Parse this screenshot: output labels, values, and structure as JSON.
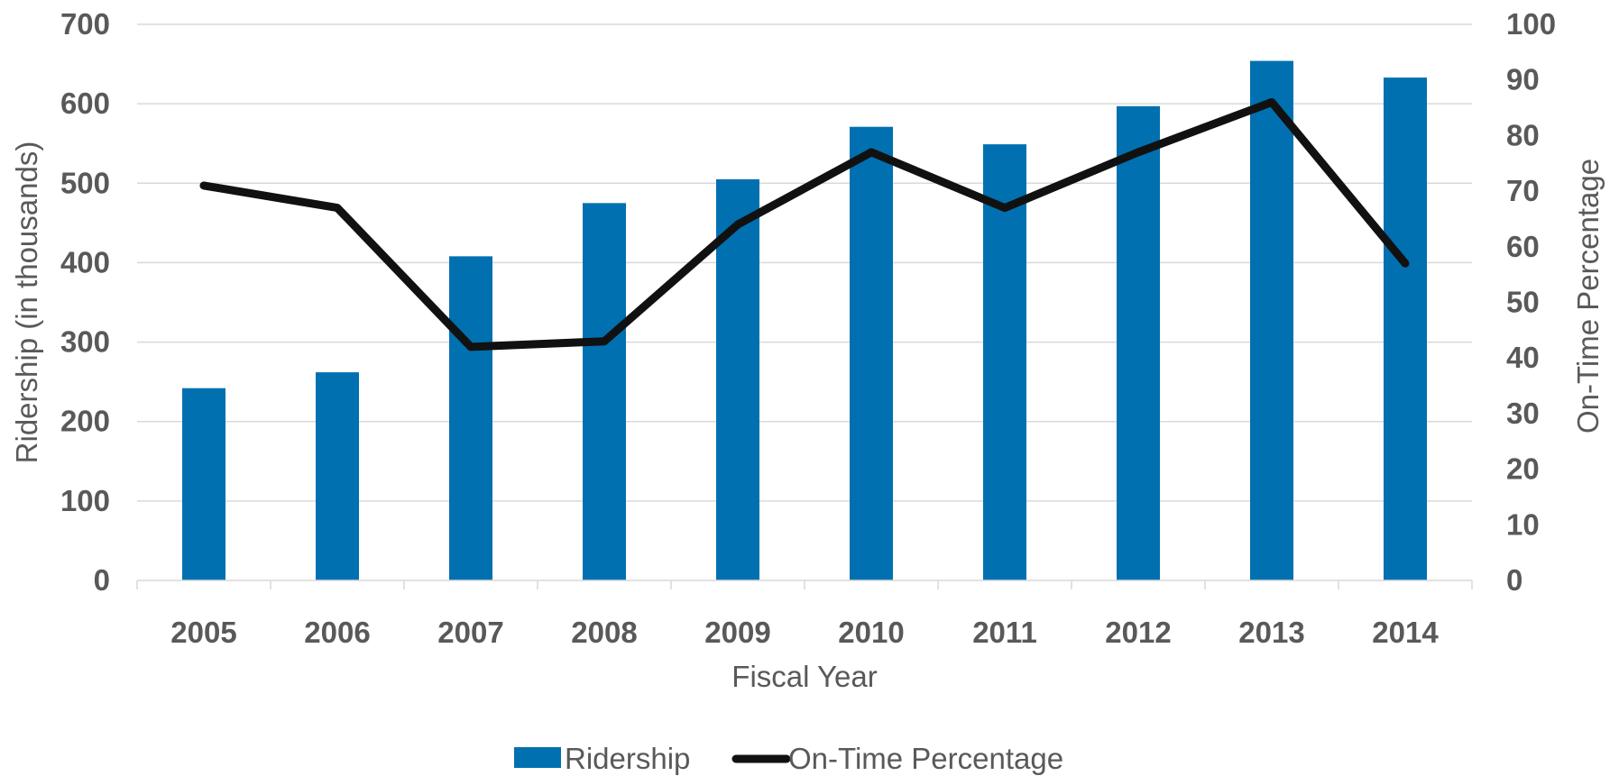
{
  "chart_data": {
    "type": "bar",
    "categories": [
      "2005",
      "2006",
      "2007",
      "2008",
      "2009",
      "2010",
      "2011",
      "2012",
      "2013",
      "2014"
    ],
    "series": [
      {
        "name": "Ridership",
        "type": "bar",
        "axis": "left",
        "color": "#0070b0",
        "values": [
          242,
          262,
          408,
          475,
          505,
          571,
          549,
          597,
          654,
          633
        ]
      },
      {
        "name": "On-Time Percentage",
        "type": "line",
        "axis": "right",
        "color": "#111111",
        "values": [
          71,
          67,
          42,
          43,
          64,
          77,
          67,
          77,
          86,
          57
        ]
      }
    ],
    "xlabel": "Fiscal Year",
    "ylabel": "Ridership (in thousands)",
    "y2label": "On-Time Percentage",
    "ylim": [
      0,
      700
    ],
    "y2lim": [
      0,
      100
    ],
    "yticks": [
      0,
      100,
      200,
      300,
      400,
      500,
      600,
      700
    ],
    "y2ticks": [
      0,
      10,
      20,
      30,
      40,
      50,
      60,
      70,
      80,
      90,
      100
    ],
    "grid": true,
    "legend": "bottom-center"
  }
}
